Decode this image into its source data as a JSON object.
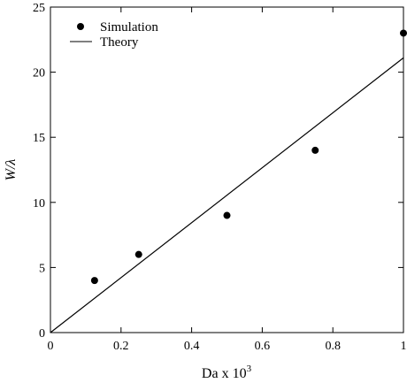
{
  "chart_data": {
    "type": "scatter",
    "title": "",
    "xlabel": "Da x 10",
    "xlabel_superscript": "3",
    "ylabel": "W/λ",
    "xlim": [
      0,
      1
    ],
    "ylim": [
      0,
      25
    ],
    "xticks": [
      0,
      0.2,
      0.4,
      0.6,
      0.8,
      1
    ],
    "xtick_labels": [
      "0",
      "0.2",
      "0.4",
      "0.6",
      "0.8",
      "1"
    ],
    "yticks": [
      0,
      5,
      10,
      15,
      20,
      25
    ],
    "ytick_labels": [
      "0",
      "5",
      "10",
      "15",
      "20",
      "25"
    ],
    "grid": false,
    "legend_position": "top-left",
    "series": [
      {
        "name": "Simulation",
        "kind": "markers",
        "color": "#000000",
        "x": [
          0.125,
          0.25,
          0.5,
          0.75,
          1.0
        ],
        "y": [
          4,
          6,
          9,
          14,
          23
        ]
      },
      {
        "name": "Theory",
        "kind": "line",
        "color": "#000000",
        "x": [
          0,
          1.0
        ],
        "y": [
          0,
          21.1
        ]
      }
    ]
  }
}
